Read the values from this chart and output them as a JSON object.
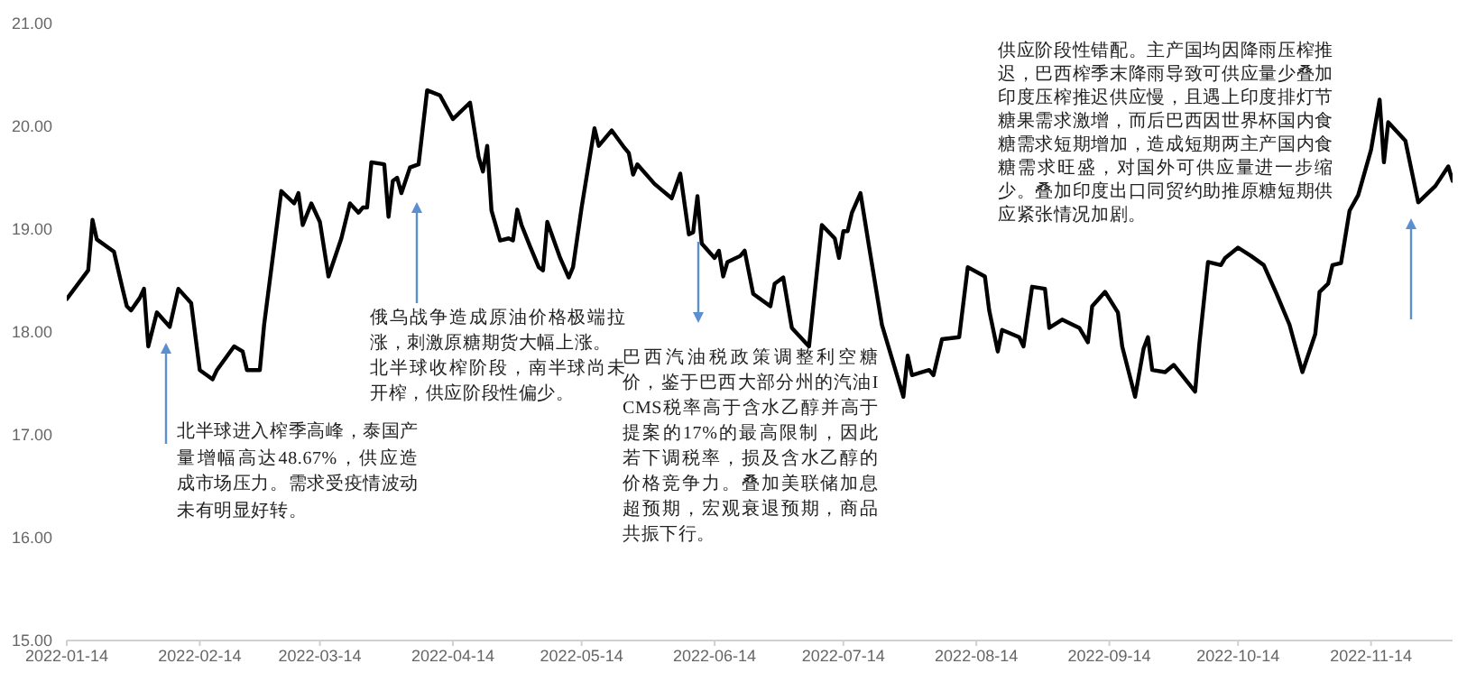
{
  "chart_data": {
    "type": "line",
    "color": "#000000",
    "x": [
      "2022-01-14",
      "2022-01-19",
      "2022-01-20",
      "2022-01-21",
      "2022-01-25",
      "2022-01-27",
      "2022-01-28",
      "2022-01-29",
      "2022-01-31",
      "2022-02-01",
      "2022-02-02",
      "2022-02-04",
      "2022-02-07",
      "2022-02-09",
      "2022-02-12",
      "2022-02-14",
      "2022-02-17",
      "2022-02-18",
      "2022-02-22",
      "2022-02-24",
      "2022-02-25",
      "2022-02-28",
      "2022-03-01",
      "2022-03-05",
      "2022-03-08",
      "2022-03-09",
      "2022-03-10",
      "2022-03-12",
      "2022-03-14",
      "2022-03-16",
      "2022-03-19",
      "2022-03-21",
      "2022-03-23",
      "2022-03-24",
      "2022-03-25",
      "2022-03-26",
      "2022-03-29",
      "2022-03-30",
      "2022-03-31",
      "2022-04-01",
      "2022-04-02",
      "2022-04-04",
      "2022-04-06",
      "2022-04-08",
      "2022-04-11",
      "2022-04-14",
      "2022-04-18",
      "2022-04-20",
      "2022-04-21",
      "2022-04-22",
      "2022-04-23",
      "2022-04-25",
      "2022-04-27",
      "2022-04-28",
      "2022-04-29",
      "2022-04-30",
      "2022-05-02",
      "2022-05-04",
      "2022-05-05",
      "2022-05-06",
      "2022-05-09",
      "2022-05-11",
      "2022-05-12",
      "2022-05-14",
      "2022-05-17",
      "2022-05-18",
      "2022-05-21",
      "2022-05-24",
      "2022-05-25",
      "2022-05-26",
      "2022-05-27",
      "2022-05-31",
      "2022-06-02",
      "2022-06-04",
      "2022-06-06",
      "2022-06-08",
      "2022-06-09",
      "2022-06-10",
      "2022-06-11",
      "2022-06-14",
      "2022-06-15",
      "2022-06-16",
      "2022-06-17",
      "2022-06-20",
      "2022-06-21",
      "2022-06-23",
      "2022-06-27",
      "2022-06-28",
      "2022-06-30",
      "2022-07-02",
      "2022-07-06",
      "2022-07-09",
      "2022-07-12",
      "2022-07-13",
      "2022-07-14",
      "2022-07-15",
      "2022-07-16",
      "2022-07-18",
      "2022-07-20",
      "2022-07-23",
      "2022-07-28",
      "2022-07-29",
      "2022-07-30",
      "2022-08-03",
      "2022-08-04",
      "2022-08-06",
      "2022-08-10",
      "2022-08-12",
      "2022-08-16",
      "2022-08-17",
      "2022-08-19",
      "2022-08-20",
      "2022-08-24",
      "2022-08-25",
      "2022-08-27",
      "2022-08-30",
      "2022-08-31",
      "2022-09-03",
      "2022-09-07",
      "2022-09-09",
      "2022-09-10",
      "2022-09-13",
      "2022-09-16",
      "2022-09-17",
      "2022-09-20",
      "2022-09-22",
      "2022-09-23",
      "2022-09-24",
      "2022-09-27",
      "2022-09-29",
      "2022-10-04",
      "2022-10-05",
      "2022-10-07",
      "2022-10-10",
      "2022-10-11",
      "2022-10-14",
      "2022-10-17",
      "2022-10-20",
      "2022-10-23",
      "2022-10-26",
      "2022-10-29",
      "2022-11-01",
      "2022-11-02",
      "2022-11-04",
      "2022-11-05",
      "2022-11-07",
      "2022-11-09",
      "2022-11-11",
      "2022-11-14",
      "2022-11-16",
      "2022-11-17",
      "2022-11-18",
      "2022-11-22",
      "2022-11-25",
      "2022-11-29",
      "2022-12-02",
      "2022-12-03"
    ],
    "values": [
      18.32,
      18.6,
      19.09,
      18.9,
      18.78,
      18.42,
      18.25,
      18.21,
      18.33,
      18.42,
      17.86,
      18.19,
      18.05,
      18.42,
      18.28,
      17.63,
      17.54,
      17.63,
      17.86,
      17.81,
      17.63,
      17.63,
      18.07,
      19.37,
      19.25,
      19.35,
      19.04,
      19.25,
      19.07,
      18.54,
      18.91,
      19.25,
      19.16,
      19.21,
      19.21,
      19.65,
      19.63,
      19.12,
      19.47,
      19.5,
      19.35,
      19.6,
      19.63,
      20.35,
      20.3,
      20.07,
      20.23,
      19.7,
      19.56,
      19.81,
      19.18,
      18.89,
      18.91,
      18.89,
      19.19,
      19.04,
      18.83,
      18.63,
      18.6,
      19.07,
      18.72,
      18.53,
      18.63,
      19.21,
      19.98,
      19.81,
      19.96,
      19.79,
      19.74,
      19.53,
      19.63,
      19.44,
      19.37,
      19.3,
      19.54,
      18.95,
      18.97,
      19.32,
      18.86,
      18.72,
      18.79,
      18.54,
      18.68,
      18.74,
      18.79,
      18.37,
      18.25,
      18.47,
      18.53,
      18.04,
      17.86,
      19.04,
      18.91,
      18.72,
      18.98,
      18.98,
      19.16,
      19.35,
      18.83,
      18.07,
      17.37,
      17.77,
      17.58,
      17.63,
      17.58,
      17.93,
      17.95,
      18.63,
      18.54,
      18.21,
      17.81,
      18.02,
      17.95,
      17.86,
      18.44,
      18.42,
      18.04,
      18.12,
      18.04,
      17.9,
      18.25,
      18.39,
      18.19,
      17.86,
      17.37,
      17.84,
      17.95,
      17.63,
      17.61,
      17.68,
      17.42,
      17.89,
      18.68,
      18.65,
      18.72,
      18.82,
      18.74,
      18.65,
      18.37,
      18.07,
      17.61,
      17.98,
      18.39,
      18.47,
      18.65,
      18.67,
      19.18,
      19.33,
      19.77,
      20.26,
      19.65,
      20.04,
      19.86,
      19.26,
      19.42,
      19.61,
      19.47
    ],
    "xlim": [
      "2022-01-14",
      "2022-12-03"
    ],
    "xticks": [
      "2022-01-14",
      "2022-02-14",
      "2022-03-14",
      "2022-04-14",
      "2022-05-14",
      "2022-06-14",
      "2022-07-14",
      "2022-08-14",
      "2022-09-14",
      "2022-10-14",
      "2022-11-14"
    ],
    "ylim": [
      15,
      21
    ],
    "yticks": [
      {
        "value": 15,
        "label": "15.00"
      },
      {
        "value": 16,
        "label": "16.00"
      },
      {
        "value": 17,
        "label": "17.00"
      },
      {
        "value": 18,
        "label": "18.00"
      },
      {
        "value": 19,
        "label": "19.00"
      },
      {
        "value": 20,
        "label": "20.00"
      },
      {
        "value": 21,
        "label": "21.00"
      }
    ],
    "annotations": [
      "北半球进入榨季高峰，泰国产量增幅高达48.67%，供应造成市场压力。需求受疫情波动未有明显好转。",
      "俄乌战争造成原油价格极端拉涨，刺激原糖期货大幅上涨。",
      "北半球收榨阶段，南半球尚未开榨，供应阶段性偏少。",
      "巴西汽油税政策调整利空糖价，鉴于巴西大部分州的汽油ICMS税率高于含水乙醇并高于提案的17%的最高限制，因此若下调税率，损及含水乙醇的价格竞争力。叠加美联储加息超预期，宏观衰退预期，商品共振下行。",
      "供应阶段性错配。主产国均因降雨压榨推迟，巴西榨季末降雨导致可供应量少叠加印度压榨推迟供应慢，且遇上印度排灯节糖果需求激增，而后巴西因世界杯国内食糖需求短期增加，造成短期两主产国内食糖需求旺盛，对国外可供应量进一步缩少。叠加印度出口同贸约助推原糖短期供应紧张情况加剧。"
    ]
  }
}
